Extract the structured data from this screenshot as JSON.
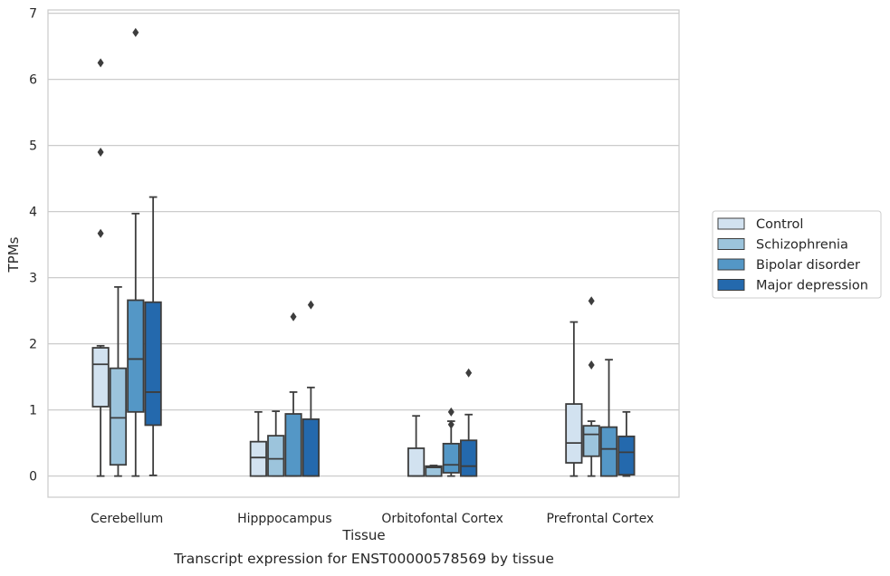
{
  "chart_data": {
    "type": "box",
    "xlabel": "Tissue",
    "ylabel": "TPMs",
    "caption": "Transcript expression for ENST00000578569 by tissue",
    "ylim": [
      -0.32,
      7.05
    ],
    "yticks": [
      "0",
      "1",
      "2",
      "3",
      "4",
      "5",
      "6",
      "7"
    ],
    "grid": true,
    "legend_position": "right",
    "categories": [
      "Cerebellum",
      "Hipppocampus",
      "Orbitofontal Cortex",
      "Prefrontal Cortex"
    ],
    "series": [
      {
        "name": "Control",
        "color": "#d2e2f0",
        "boxes": [
          {
            "whislo": 0.0,
            "q1": 1.05,
            "med": 1.69,
            "q3": 1.94,
            "whishi": 1.97,
            "fliers": [
              3.67,
              4.9,
              6.25
            ]
          },
          {
            "whislo": 0.0,
            "q1": 0.0,
            "med": 0.28,
            "q3": 0.52,
            "whishi": 0.97,
            "fliers": []
          },
          {
            "whislo": 0.0,
            "q1": 0.0,
            "med": 0.0,
            "q3": 0.42,
            "whishi": 0.91,
            "fliers": []
          },
          {
            "whislo": 0.0,
            "q1": 0.2,
            "med": 0.5,
            "q3": 1.09,
            "whishi": 2.33,
            "fliers": []
          }
        ]
      },
      {
        "name": "Schizophrenia",
        "color": "#9cc4dc",
        "boxes": [
          {
            "whislo": 0.0,
            "q1": 0.17,
            "med": 0.88,
            "q3": 1.63,
            "whishi": 2.86,
            "fliers": []
          },
          {
            "whislo": 0.0,
            "q1": 0.0,
            "med": 0.26,
            "q3": 0.61,
            "whishi": 0.98,
            "fliers": []
          },
          {
            "whislo": 0.0,
            "q1": 0.0,
            "med": 0.13,
            "q3": 0.15,
            "whishi": 0.16,
            "fliers": []
          },
          {
            "whislo": 0.0,
            "q1": 0.3,
            "med": 0.63,
            "q3": 0.76,
            "whishi": 0.83,
            "fliers": [
              1.68,
              2.65
            ]
          }
        ]
      },
      {
        "name": "Bipolar disorder",
        "color": "#5497c6",
        "boxes": [
          {
            "whislo": 0.0,
            "q1": 0.97,
            "med": 1.77,
            "q3": 2.66,
            "whishi": 3.97,
            "fliers": [
              6.71
            ]
          },
          {
            "whislo": 0.0,
            "q1": 0.0,
            "med": 0.0,
            "q3": 0.94,
            "whishi": 1.27,
            "fliers": [
              2.41
            ]
          },
          {
            "whislo": 0.0,
            "q1": 0.05,
            "med": 0.17,
            "q3": 0.49,
            "whishi": 0.83,
            "fliers": [
              0.78,
              0.97
            ]
          },
          {
            "whislo": 0.0,
            "q1": 0.0,
            "med": 0.41,
            "q3": 0.74,
            "whishi": 1.76,
            "fliers": []
          }
        ]
      },
      {
        "name": "Major depression",
        "color": "#2469ad",
        "boxes": [
          {
            "whislo": 0.01,
            "q1": 0.77,
            "med": 1.27,
            "q3": 2.63,
            "whishi": 4.22,
            "fliers": []
          },
          {
            "whislo": 0.0,
            "q1": 0.0,
            "med": 0.0,
            "q3": 0.86,
            "whishi": 1.34,
            "fliers": [
              2.59
            ]
          },
          {
            "whislo": 0.0,
            "q1": 0.0,
            "med": 0.15,
            "q3": 0.54,
            "whishi": 0.93,
            "fliers": [
              1.56
            ]
          },
          {
            "whislo": 0.0,
            "q1": 0.02,
            "med": 0.36,
            "q3": 0.6,
            "whishi": 0.97,
            "fliers": []
          }
        ]
      }
    ]
  }
}
